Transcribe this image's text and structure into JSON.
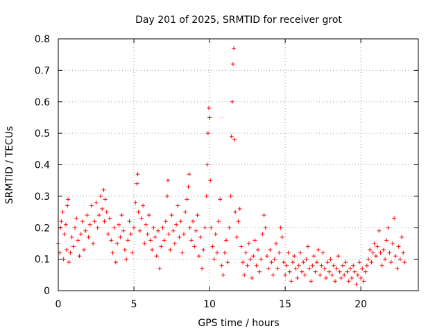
{
  "chart_data": {
    "type": "scatter",
    "title": "Day 201 of 2025, SRMTID for receiver grot",
    "xlabel": "GPS time / hours",
    "ylabel": "SRMTID / TECUs",
    "xlim": [
      0,
      23.8
    ],
    "ylim": [
      0,
      0.8
    ],
    "x_ticks": [
      0,
      5,
      10,
      15,
      20
    ],
    "y_ticks": [
      0,
      0.1,
      0.2,
      0.3,
      0.4,
      0.5,
      0.6,
      0.7,
      0.8
    ],
    "grid": true,
    "legend": "none",
    "marker": "+",
    "color": "#ff0000",
    "series": [
      {
        "name": "SRMTID",
        "points": [
          [
            0.0,
            0.15
          ],
          [
            0.1,
            0.12
          ],
          [
            0.15,
            0.2
          ],
          [
            0.2,
            0.22
          ],
          [
            0.3,
            0.25
          ],
          [
            0.35,
            0.1
          ],
          [
            0.4,
            0.18
          ],
          [
            0.5,
            0.21
          ],
          [
            0.55,
            0.13
          ],
          [
            0.6,
            0.27
          ],
          [
            0.65,
            0.29
          ],
          [
            0.7,
            0.09
          ],
          [
            0.8,
            0.12
          ],
          [
            0.9,
            0.17
          ],
          [
            1.0,
            0.14
          ],
          [
            1.1,
            0.2
          ],
          [
            1.2,
            0.23
          ],
          [
            1.3,
            0.16
          ],
          [
            1.4,
            0.11
          ],
          [
            1.5,
            0.18
          ],
          [
            1.6,
            0.22
          ],
          [
            1.7,
            0.13
          ],
          [
            1.8,
            0.19
          ],
          [
            1.9,
            0.24
          ],
          [
            2.0,
            0.17
          ],
          [
            2.1,
            0.21
          ],
          [
            2.2,
            0.27
          ],
          [
            2.3,
            0.15
          ],
          [
            2.4,
            0.22
          ],
          [
            2.5,
            0.28
          ],
          [
            2.6,
            0.2
          ],
          [
            2.7,
            0.24
          ],
          [
            2.8,
            0.3
          ],
          [
            2.9,
            0.26
          ],
          [
            3.0,
            0.32
          ],
          [
            3.05,
            0.22
          ],
          [
            3.1,
            0.29
          ],
          [
            3.2,
            0.25
          ],
          [
            3.3,
            0.18
          ],
          [
            3.4,
            0.23
          ],
          [
            3.5,
            0.16
          ],
          [
            3.6,
            0.12
          ],
          [
            3.7,
            0.2
          ],
          [
            3.8,
            0.09
          ],
          [
            3.9,
            0.15
          ],
          [
            4.0,
            0.21
          ],
          [
            4.1,
            0.17
          ],
          [
            4.2,
            0.24
          ],
          [
            4.3,
            0.19
          ],
          [
            4.4,
            0.13
          ],
          [
            4.5,
            0.1
          ],
          [
            4.6,
            0.16
          ],
          [
            4.7,
            0.22
          ],
          [
            4.8,
            0.18
          ],
          [
            4.9,
            0.12
          ],
          [
            5.0,
            0.2
          ],
          [
            5.1,
            0.28
          ],
          [
            5.2,
            0.34
          ],
          [
            5.25,
            0.37
          ],
          [
            5.3,
            0.25
          ],
          [
            5.4,
            0.19
          ],
          [
            5.5,
            0.23
          ],
          [
            5.6,
            0.27
          ],
          [
            5.7,
            0.15
          ],
          [
            5.8,
            0.21
          ],
          [
            5.9,
            0.18
          ],
          [
            6.0,
            0.24
          ],
          [
            6.1,
            0.16
          ],
          [
            6.2,
            0.13
          ],
          [
            6.3,
            0.2
          ],
          [
            6.4,
            0.17
          ],
          [
            6.5,
            0.11
          ],
          [
            6.6,
            0.19
          ],
          [
            6.7,
            0.07
          ],
          [
            6.8,
            0.14
          ],
          [
            6.9,
            0.2
          ],
          [
            7.0,
            0.16
          ],
          [
            7.1,
            0.22
          ],
          [
            7.2,
            0.3
          ],
          [
            7.25,
            0.35
          ],
          [
            7.3,
            0.18
          ],
          [
            7.4,
            0.13
          ],
          [
            7.5,
            0.24
          ],
          [
            7.6,
            0.19
          ],
          [
            7.7,
            0.15
          ],
          [
            7.8,
            0.21
          ],
          [
            7.9,
            0.27
          ],
          [
            8.0,
            0.17
          ],
          [
            8.1,
            0.22
          ],
          [
            8.2,
            0.12
          ],
          [
            8.3,
            0.18
          ],
          [
            8.4,
            0.25
          ],
          [
            8.5,
            0.29
          ],
          [
            8.6,
            0.33
          ],
          [
            8.65,
            0.37
          ],
          [
            8.7,
            0.2
          ],
          [
            8.8,
            0.16
          ],
          [
            8.9,
            0.22
          ],
          [
            9.0,
            0.14
          ],
          [
            9.1,
            0.19
          ],
          [
            9.2,
            0.24
          ],
          [
            9.3,
            0.11
          ],
          [
            9.4,
            0.17
          ],
          [
            9.5,
            0.07
          ],
          [
            9.6,
            0.13
          ],
          [
            9.7,
            0.2
          ],
          [
            9.8,
            0.3
          ],
          [
            9.85,
            0.4
          ],
          [
            9.9,
            0.5
          ],
          [
            9.95,
            0.58
          ],
          [
            10.0,
            0.55
          ],
          [
            10.05,
            0.35
          ],
          [
            10.1,
            0.2
          ],
          [
            10.2,
            0.14
          ],
          [
            10.3,
            0.1
          ],
          [
            10.4,
            0.18
          ],
          [
            10.5,
            0.12
          ],
          [
            10.6,
            0.22
          ],
          [
            10.7,
            0.29
          ],
          [
            10.8,
            0.08
          ],
          [
            10.9,
            0.05
          ],
          [
            11.0,
            0.12
          ],
          [
            11.1,
            0.16
          ],
          [
            11.2,
            0.09
          ],
          [
            11.3,
            0.2
          ],
          [
            11.4,
            0.3
          ],
          [
            11.45,
            0.49
          ],
          [
            11.5,
            0.6
          ],
          [
            11.55,
            0.72
          ],
          [
            11.6,
            0.77
          ],
          [
            11.65,
            0.48
          ],
          [
            11.7,
            0.25
          ],
          [
            11.8,
            0.17
          ],
          [
            11.9,
            0.22
          ],
          [
            12.0,
            0.26
          ],
          [
            12.1,
            0.14
          ],
          [
            12.2,
            0.09
          ],
          [
            12.3,
            0.05
          ],
          [
            12.4,
            0.12
          ],
          [
            12.5,
            0.08
          ],
          [
            12.6,
            0.15
          ],
          [
            12.7,
            0.1
          ],
          [
            12.8,
            0.04
          ],
          [
            12.9,
            0.11
          ],
          [
            13.0,
            0.16
          ],
          [
            13.1,
            0.08
          ],
          [
            13.2,
            0.13
          ],
          [
            13.3,
            0.06
          ],
          [
            13.4,
            0.1
          ],
          [
            13.5,
            0.18
          ],
          [
            13.6,
            0.24
          ],
          [
            13.7,
            0.2
          ],
          [
            13.8,
            0.11
          ],
          [
            13.9,
            0.07
          ],
          [
            14.0,
            0.13
          ],
          [
            14.1,
            0.09
          ],
          [
            14.2,
            0.05
          ],
          [
            14.3,
            0.1
          ],
          [
            14.4,
            0.15
          ],
          [
            14.5,
            0.07
          ],
          [
            14.6,
            0.12
          ],
          [
            14.7,
            0.2
          ],
          [
            14.8,
            0.17
          ],
          [
            14.9,
            0.09
          ],
          [
            15.0,
            0.05
          ],
          [
            15.1,
            0.08
          ],
          [
            15.2,
            0.12
          ],
          [
            15.3,
            0.06
          ],
          [
            15.4,
            0.03
          ],
          [
            15.5,
            0.09
          ],
          [
            15.6,
            0.11
          ],
          [
            15.7,
            0.07
          ],
          [
            15.8,
            0.04
          ],
          [
            15.9,
            0.08
          ],
          [
            16.0,
            0.12
          ],
          [
            16.1,
            0.06
          ],
          [
            16.2,
            0.09
          ],
          [
            16.3,
            0.05
          ],
          [
            16.4,
            0.1
          ],
          [
            16.5,
            0.14
          ],
          [
            16.6,
            0.07
          ],
          [
            16.7,
            0.03
          ],
          [
            16.8,
            0.08
          ],
          [
            16.9,
            0.11
          ],
          [
            17.0,
            0.06
          ],
          [
            17.1,
            0.09
          ],
          [
            17.2,
            0.13
          ],
          [
            17.3,
            0.05
          ],
          [
            17.4,
            0.08
          ],
          [
            17.5,
            0.12
          ],
          [
            17.6,
            0.07
          ],
          [
            17.7,
            0.04
          ],
          [
            17.8,
            0.09
          ],
          [
            17.9,
            0.06
          ],
          [
            18.0,
            0.1
          ],
          [
            18.1,
            0.05
          ],
          [
            18.2,
            0.08
          ],
          [
            18.3,
            0.03
          ],
          [
            18.4,
            0.07
          ],
          [
            18.5,
            0.11
          ],
          [
            18.6,
            0.06
          ],
          [
            18.7,
            0.04
          ],
          [
            18.8,
            0.08
          ],
          [
            18.9,
            0.05
          ],
          [
            19.0,
            0.09
          ],
          [
            19.1,
            0.06
          ],
          [
            19.2,
            0.03
          ],
          [
            19.3,
            0.07
          ],
          [
            19.4,
            0.04
          ],
          [
            19.5,
            0.08
          ],
          [
            19.6,
            0.06
          ],
          [
            19.7,
            0.02
          ],
          [
            19.8,
            0.05
          ],
          [
            19.9,
            0.09
          ],
          [
            20.0,
            0.04
          ],
          [
            20.1,
            0.07
          ],
          [
            20.2,
            0.03
          ],
          [
            20.3,
            0.06
          ],
          [
            20.4,
            0.08
          ],
          [
            20.5,
            0.1
          ],
          [
            20.6,
            0.13
          ],
          [
            20.7,
            0.09
          ],
          [
            20.8,
            0.12
          ],
          [
            20.9,
            0.15
          ],
          [
            21.0,
            0.11
          ],
          [
            21.1,
            0.14
          ],
          [
            21.2,
            0.19
          ],
          [
            21.3,
            0.12
          ],
          [
            21.4,
            0.08
          ],
          [
            21.5,
            0.13
          ],
          [
            21.6,
            0.1
          ],
          [
            21.7,
            0.16
          ],
          [
            21.8,
            0.2
          ],
          [
            21.9,
            0.12
          ],
          [
            22.0,
            0.09
          ],
          [
            22.1,
            0.15
          ],
          [
            22.2,
            0.23
          ],
          [
            22.3,
            0.11
          ],
          [
            22.4,
            0.07
          ],
          [
            22.5,
            0.14
          ],
          [
            22.6,
            0.1
          ],
          [
            22.7,
            0.17
          ],
          [
            22.8,
            0.12
          ],
          [
            22.9,
            0.09
          ]
        ]
      }
    ]
  }
}
